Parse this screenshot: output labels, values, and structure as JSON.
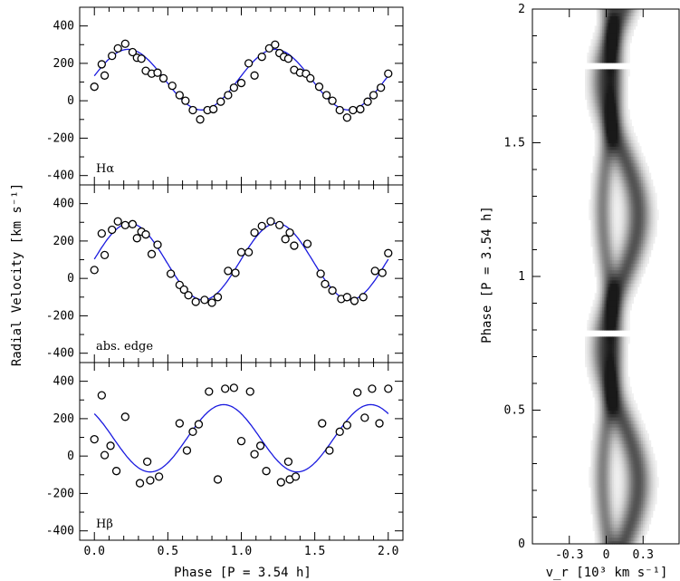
{
  "chart_data": [
    {
      "type": "scatter",
      "panel_label": "Hα",
      "xlim": [
        -0.1,
        2.1
      ],
      "ylim": [
        -450,
        500
      ],
      "x_ticks": [
        0.0,
        0.5,
        1.0,
        1.5,
        2.0
      ],
      "y_ticks": [
        -400,
        -200,
        0,
        200,
        400
      ],
      "fit": {
        "mean": 113,
        "amplitude": 162,
        "phase_of_max": 0.23
      },
      "points": [
        [
          0.0,
          75
        ],
        [
          0.05,
          195
        ],
        [
          0.07,
          135
        ],
        [
          0.12,
          240
        ],
        [
          0.16,
          280
        ],
        [
          0.21,
          305
        ],
        [
          0.26,
          260
        ],
        [
          0.29,
          230
        ],
        [
          0.32,
          225
        ],
        [
          0.35,
          160
        ],
        [
          0.39,
          145
        ],
        [
          0.43,
          150
        ],
        [
          0.47,
          120
        ],
        [
          0.53,
          80
        ],
        [
          0.58,
          30
        ],
        [
          0.62,
          0
        ],
        [
          0.67,
          -50
        ],
        [
          0.72,
          -100
        ],
        [
          0.77,
          -50
        ],
        [
          0.81,
          -45
        ],
        [
          0.86,
          -5
        ],
        [
          0.91,
          30
        ],
        [
          0.95,
          70
        ],
        [
          1.0,
          95
        ],
        [
          1.05,
          200
        ],
        [
          1.09,
          135
        ],
        [
          1.14,
          235
        ],
        [
          1.19,
          280
        ],
        [
          1.23,
          300
        ],
        [
          1.26,
          255
        ],
        [
          1.29,
          235
        ],
        [
          1.32,
          225
        ],
        [
          1.36,
          165
        ],
        [
          1.4,
          150
        ],
        [
          1.44,
          145
        ],
        [
          1.47,
          120
        ],
        [
          1.53,
          75
        ],
        [
          1.58,
          30
        ],
        [
          1.62,
          0
        ],
        [
          1.67,
          -50
        ],
        [
          1.72,
          -90
        ],
        [
          1.76,
          -50
        ],
        [
          1.81,
          -45
        ],
        [
          1.86,
          -5
        ],
        [
          1.9,
          30
        ],
        [
          1.95,
          70
        ],
        [
          2.0,
          145
        ]
      ]
    },
    {
      "type": "scatter",
      "panel_label": "abs. edge",
      "xlim": [
        -0.1,
        2.1
      ],
      "ylim": [
        -450,
        500
      ],
      "x_ticks": [
        0.0,
        0.5,
        1.0,
        1.5,
        2.0
      ],
      "y_ticks": [
        -400,
        -200,
        0,
        200,
        400
      ],
      "fit": {
        "mean": 90,
        "amplitude": 205,
        "phase_of_max": 0.24
      },
      "points": [
        [
          0.0,
          45
        ],
        [
          0.05,
          240
        ],
        [
          0.07,
          125
        ],
        [
          0.12,
          260
        ],
        [
          0.16,
          305
        ],
        [
          0.21,
          285
        ],
        [
          0.26,
          290
        ],
        [
          0.29,
          215
        ],
        [
          0.32,
          250
        ],
        [
          0.35,
          235
        ],
        [
          0.39,
          130
        ],
        [
          0.43,
          180
        ],
        [
          0.52,
          25
        ],
        [
          0.58,
          -35
        ],
        [
          0.61,
          -60
        ],
        [
          0.64,
          -90
        ],
        [
          0.69,
          -125
        ],
        [
          0.75,
          -115
        ],
        [
          0.8,
          -130
        ],
        [
          0.84,
          -100
        ],
        [
          0.91,
          40
        ],
        [
          0.96,
          30
        ],
        [
          1.0,
          140
        ],
        [
          1.05,
          140
        ],
        [
          1.09,
          245
        ],
        [
          1.14,
          280
        ],
        [
          1.2,
          305
        ],
        [
          1.26,
          285
        ],
        [
          1.3,
          210
        ],
        [
          1.33,
          245
        ],
        [
          1.36,
          175
        ],
        [
          1.45,
          185
        ],
        [
          1.54,
          25
        ],
        [
          1.57,
          -30
        ],
        [
          1.62,
          -65
        ],
        [
          1.68,
          -110
        ],
        [
          1.72,
          -100
        ],
        [
          1.77,
          -120
        ],
        [
          1.83,
          -100
        ],
        [
          1.91,
          40
        ],
        [
          1.96,
          30
        ],
        [
          2.0,
          135
        ]
      ]
    },
    {
      "type": "scatter",
      "panel_label": "Hβ",
      "xlim": [
        -0.1,
        2.1
      ],
      "ylim": [
        -450,
        500
      ],
      "x_ticks": [
        0.0,
        0.5,
        1.0,
        1.5,
        2.0
      ],
      "y_ticks": [
        -400,
        -200,
        0,
        200,
        400
      ],
      "x_tick_labels": [
        "0.0",
        "0.5",
        "1.0",
        "1.5",
        "2.0"
      ],
      "fit": {
        "mean": 95,
        "amplitude": 180,
        "phase_of_max": 0.88
      },
      "points": [
        [
          0.0,
          90
        ],
        [
          0.05,
          325
        ],
        [
          0.07,
          5
        ],
        [
          0.11,
          55
        ],
        [
          0.15,
          -80
        ],
        [
          0.21,
          210
        ],
        [
          0.31,
          -145
        ],
        [
          0.36,
          -30
        ],
        [
          0.38,
          -130
        ],
        [
          0.44,
          -110
        ],
        [
          0.58,
          175
        ],
        [
          0.63,
          30
        ],
        [
          0.67,
          130
        ],
        [
          0.71,
          170
        ],
        [
          0.78,
          345
        ],
        [
          0.84,
          -125
        ],
        [
          0.89,
          360
        ],
        [
          0.95,
          365
        ],
        [
          1.0,
          80
        ],
        [
          1.06,
          345
        ],
        [
          1.09,
          10
        ],
        [
          1.13,
          55
        ],
        [
          1.17,
          -80
        ],
        [
          1.27,
          -140
        ],
        [
          1.32,
          -30
        ],
        [
          1.33,
          -125
        ],
        [
          1.37,
          -110
        ],
        [
          1.55,
          175
        ],
        [
          1.6,
          30
        ],
        [
          1.67,
          130
        ],
        [
          1.72,
          165
        ],
        [
          1.79,
          340
        ],
        [
          1.84,
          205
        ],
        [
          1.89,
          360
        ],
        [
          1.94,
          175
        ],
        [
          2.0,
          360
        ]
      ]
    },
    {
      "type": "heatmap",
      "ylim": [
        0,
        2
      ],
      "xlim": [
        -0.6,
        0.6
      ],
      "y_ticks": [
        0,
        0.5,
        1,
        1.5,
        2
      ],
      "y_tick_labels": [
        "0",
        "0.5",
        "1",
        "1.5",
        "2"
      ],
      "x_ticks": [
        -0.3,
        0,
        0.3
      ],
      "x_tick_labels": [
        "-0.3",
        "0",
        "0.3"
      ],
      "ylabel": "Phase [P = 3.54 h]",
      "gaps": [
        [
          0.78,
          0.8
        ],
        [
          1.78,
          1.8
        ]
      ],
      "components": [
        {
          "gamma": 0.12,
          "amplitude": 0.14,
          "phase_of_max": 0.23,
          "width": 0.07,
          "strength": 0.75
        },
        {
          "gamma": 0.02,
          "amplitude": 0.05,
          "phase_of_max": 0.75,
          "width": 0.05,
          "strength": 0.55
        }
      ]
    }
  ],
  "labels": {
    "ylabel_left": "Radial Velocity [km s⁻¹]",
    "xlabel_left": "Phase [P = 3.54 h]",
    "xlabel_right": "v_r [10³ km s⁻¹]"
  }
}
